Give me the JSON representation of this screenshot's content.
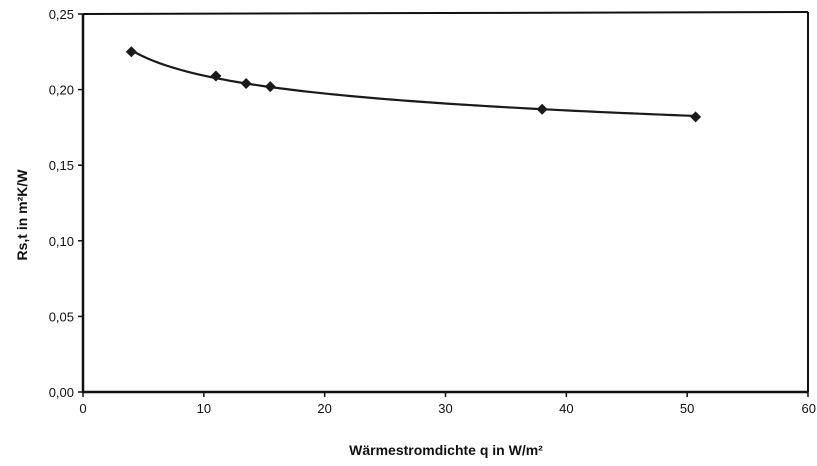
{
  "chart_data": {
    "type": "scatter",
    "title": "",
    "xlabel": "Wärmestromdichte q in W/m²",
    "ylabel": "Rs,t in m²K/W",
    "xlim": [
      0,
      60
    ],
    "ylim": [
      0,
      0.25
    ],
    "x_ticks": [
      "0",
      "10",
      "20",
      "30",
      "40",
      "50",
      "60"
    ],
    "y_ticks": [
      "0,00",
      "0,05",
      "0,10",
      "0,15",
      "0,20",
      "0,25"
    ],
    "grid": false,
    "legend": "none",
    "marker": "diamond",
    "trendline": true,
    "series": [
      {
        "x": [
          4,
          11,
          13.5,
          15.5,
          38,
          50.7
        ],
        "y": [
          0.225,
          0.209,
          0.204,
          0.202,
          0.187,
          0.182
        ]
      }
    ],
    "colors": {
      "marker": "#1a1a1a",
      "line": "#1a1a1a",
      "axis": "#111111"
    }
  }
}
